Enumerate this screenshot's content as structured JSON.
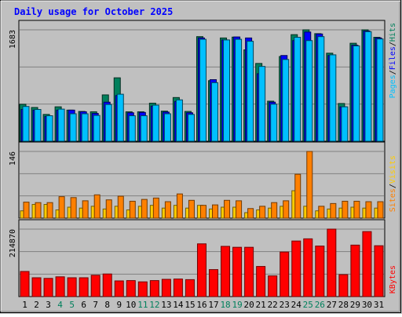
{
  "title": "Daily usage for October 2025",
  "colors": {
    "background": "#c0c0c0",
    "title": "#0000ff",
    "hits": "#00805c",
    "files": "#0000ff",
    "pages": "#00c0ff",
    "visits": "#ffcc00",
    "sites": "#ff8000",
    "kbytes": "#ff0000",
    "weekend_label": "#00805c",
    "weekday_label": "#000000"
  },
  "chart_data": [
    {
      "type": "bar",
      "panel": "hits-files-pages",
      "legend": [
        "Pages",
        "Files",
        "Hits"
      ],
      "ymax_label": "1683",
      "ylim": [
        0,
        1683
      ],
      "categories": [
        "1",
        "2",
        "3",
        "4",
        "5",
        "6",
        "7",
        "8",
        "9",
        "10",
        "11",
        "12",
        "13",
        "14",
        "15",
        "16",
        "17",
        "18",
        "19",
        "20",
        "21",
        "22",
        "23",
        "24",
        "25",
        "26",
        "27",
        "28",
        "29",
        "30",
        "31"
      ],
      "weekend_days": [
        "4",
        "5",
        "11",
        "12",
        "18",
        "19",
        "25",
        "26"
      ],
      "series": [
        {
          "name": "Hits",
          "values": [
            558,
            510,
            405,
            520,
            470,
            450,
            445,
            700,
            958,
            445,
            445,
            575,
            455,
            660,
            450,
            1580,
            915,
            1560,
            1573,
            1380,
            1175,
            605,
            1280,
            1610,
            1683,
            1625,
            1330,
            570,
            1480,
            1683,
            1570
          ]
        },
        {
          "name": "Files",
          "values": [
            480,
            470,
            375,
            470,
            470,
            445,
            420,
            590,
            690,
            430,
            435,
            530,
            440,
            600,
            430,
            1560,
            930,
            1530,
            1575,
            1560,
            1020,
            590,
            1295,
            1520,
            1650,
            1620,
            1295,
            520,
            1450,
            1665,
            1560
          ]
        },
        {
          "name": "Pages",
          "values": [
            525,
            480,
            385,
            485,
            415,
            415,
            390,
            555,
            710,
            385,
            385,
            545,
            415,
            625,
            405,
            1540,
            885,
            1530,
            1540,
            1510,
            1130,
            560,
            1235,
            1570,
            1520,
            1580,
            1305,
            520,
            1440,
            1655,
            1545
          ]
        }
      ]
    },
    {
      "type": "bar",
      "panel": "visits-sites",
      "legend": [
        "Sites",
        "Visits"
      ],
      "ymax_label": "146",
      "ylim": [
        0,
        146
      ],
      "categories": [
        "1",
        "2",
        "3",
        "4",
        "5",
        "6",
        "7",
        "8",
        "9",
        "10",
        "11",
        "12",
        "13",
        "14",
        "15",
        "16",
        "17",
        "18",
        "19",
        "20",
        "21",
        "22",
        "23",
        "24",
        "25",
        "26",
        "27",
        "28",
        "29",
        "30",
        "31"
      ],
      "series": [
        {
          "name": "Visits",
          "values": [
            16,
            30,
            30,
            18,
            24,
            22,
            26,
            20,
            26,
            18,
            26,
            28,
            22,
            28,
            22,
            28,
            20,
            24,
            24,
            12,
            18,
            22,
            26,
            60,
            26,
            16,
            20,
            22,
            24,
            22,
            22
          ]
        },
        {
          "name": "Sites",
          "values": [
            35,
            34,
            34,
            47,
            45,
            38,
            51,
            40,
            48,
            37,
            41,
            44,
            36,
            53,
            39,
            28,
            29,
            39,
            38,
            21,
            26,
            34,
            38,
            96,
            146,
            26,
            32,
            37,
            37,
            36,
            36
          ]
        }
      ]
    },
    {
      "type": "bar",
      "panel": "kbytes",
      "legend": [
        "KBytes"
      ],
      "ymax_label": "214870",
      "ylim": [
        0,
        214870
      ],
      "categories": [
        "1",
        "2",
        "3",
        "4",
        "5",
        "6",
        "7",
        "8",
        "9",
        "10",
        "11",
        "12",
        "13",
        "14",
        "15",
        "16",
        "17",
        "18",
        "19",
        "20",
        "21",
        "22",
        "23",
        "24",
        "25",
        "26",
        "27",
        "28",
        "29",
        "30",
        "31"
      ],
      "series": [
        {
          "name": "KBytes",
          "values": [
            80000,
            60000,
            58000,
            63000,
            60000,
            60000,
            68000,
            72000,
            50000,
            51000,
            47000,
            51000,
            55000,
            56000,
            54000,
            168000,
            86000,
            160000,
            157000,
            157000,
            96000,
            66000,
            142000,
            177000,
            184000,
            161000,
            214870,
            70000,
            164000,
            207000,
            162000
          ]
        }
      ]
    }
  ]
}
